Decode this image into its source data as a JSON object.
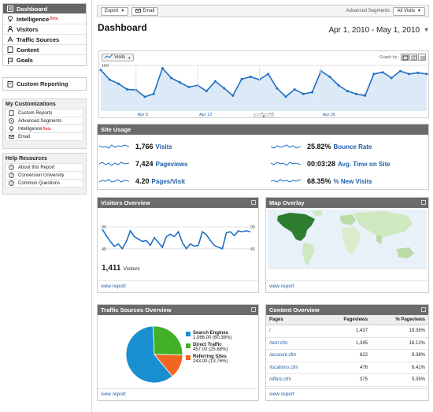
{
  "sidebar": {
    "nav": [
      {
        "label": "Dashboard",
        "icon": "dashboard-icon",
        "active": true
      },
      {
        "label": "Intelligence",
        "icon": "bulb-icon",
        "badge": "Beta"
      },
      {
        "label": "Visitors",
        "icon": "person-icon"
      },
      {
        "label": "Traffic Sources",
        "icon": "traffic-icon"
      },
      {
        "label": "Content",
        "icon": "page-icon"
      },
      {
        "label": "Goals",
        "icon": "flag-icon"
      }
    ],
    "custom_reporting": "Custom Reporting",
    "my_customizations": {
      "title": "My Customizations",
      "items": [
        {
          "label": "Custom Reports",
          "icon": "doc-icon"
        },
        {
          "label": "Advanced Segments",
          "icon": "segment-icon"
        },
        {
          "label": "Intelligence",
          "icon": "bulb-icon",
          "badge": "Beta"
        },
        {
          "label": "Email",
          "icon": "email-icon"
        }
      ]
    },
    "help": {
      "title": "Help Resources",
      "items": [
        {
          "label": "About this Report",
          "icon": "help-icon"
        },
        {
          "label": "Conversion University",
          "icon": "help-icon"
        },
        {
          "label": "Common Questions",
          "icon": "help-icon"
        }
      ]
    }
  },
  "toolbar": {
    "export": "Export",
    "email": "Email",
    "segments_label": "Advanced Segments:",
    "segments_value": "All Visits"
  },
  "page_title": "Dashboard",
  "date_range": "Apr 1, 2010 - May 1, 2010",
  "main_chart": {
    "metric": "Visits",
    "graph_by": "Graph by:",
    "y_ticks": [
      "100",
      "50"
    ],
    "x_labels": [
      "Apr 5",
      "Apr 12",
      "Apr 19",
      "Apr 26"
    ],
    "values": [
      92,
      75,
      68,
      58,
      57,
      45,
      50,
      95,
      78,
      70,
      62,
      65,
      55,
      72,
      60,
      47,
      76,
      80,
      75,
      85,
      60,
      45,
      58,
      50,
      53,
      90,
      80,
      65,
      55,
      50,
      47,
      85,
      88,
      78,
      90,
      85,
      87,
      85
    ]
  },
  "site_usage": {
    "title": "Site Usage",
    "metrics": [
      {
        "value": "1,766",
        "label": "Visits"
      },
      {
        "value": "7,424",
        "label": "Pageviews"
      },
      {
        "value": "4.20",
        "label": "Pages/Visit"
      },
      {
        "value": "25.82%",
        "label": "Bounce Rate"
      },
      {
        "value": "00:03:28",
        "label": "Avg. Time on Site"
      },
      {
        "value": "68.35%",
        "label": "% New Visits"
      }
    ]
  },
  "visitors_overview": {
    "title": "Visitors Overview",
    "y_ticks": [
      "90",
      "45"
    ],
    "values": [
      85,
      72,
      60,
      50,
      55,
      45,
      60,
      82,
      70,
      65,
      60,
      62,
      52,
      68,
      58,
      48,
      70,
      75,
      70,
      80,
      58,
      45,
      55,
      50,
      52,
      80,
      74,
      62,
      52,
      48,
      45,
      78,
      80,
      72,
      82,
      80,
      82,
      80
    ],
    "count": "1,411",
    "count_label": "Visitors",
    "link": "view report"
  },
  "map_overlay": {
    "title": "Map Overlay",
    "link": "view report"
  },
  "traffic_sources": {
    "title": "Traffic Sources Overview",
    "link": "view report",
    "sources": [
      {
        "name": "Search Engines",
        "detail": "1,066.00 (60.36%)",
        "percent": 60.36,
        "color": "#1a8fcf"
      },
      {
        "name": "Direct Traffic",
        "detail": "457.00 (25.88%)",
        "percent": 25.88,
        "color": "#43b02a"
      },
      {
        "name": "Referring Sites",
        "detail": "243.00 (13.76%)",
        "percent": 13.76,
        "color": "#f26522"
      }
    ]
  },
  "content_overview": {
    "title": "Content Overview",
    "link": "view report",
    "headers": {
      "pages": "Pages",
      "pageviews": "Pageviews",
      "pct": "% Pageviews"
    },
    "rows": [
      {
        "page": "/",
        "pageviews": "1,437",
        "pct": "19.36%"
      },
      {
        "page": "/rent.cfm",
        "pageviews": "1,345",
        "pct": "18.12%"
      },
      {
        "page": "/account.cfm",
        "pageviews": "622",
        "pct": "8.38%"
      },
      {
        "page": "/locations.cfm",
        "pageviews": "476",
        "pct": "6.41%"
      },
      {
        "page": "/offers.cfm",
        "pageviews": "375",
        "pct": "5.05%"
      }
    ]
  }
}
